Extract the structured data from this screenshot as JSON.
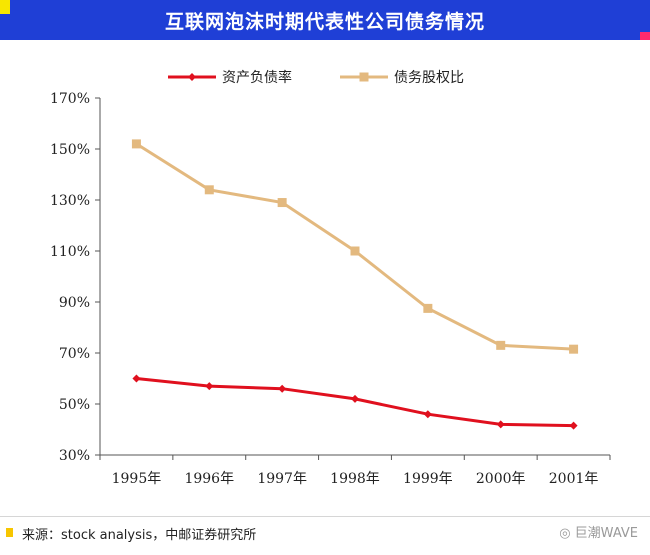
{
  "header": {
    "title": "互联网泡沫时期代表性公司债务情况"
  },
  "footer": {
    "source": "来源：stock analysis，中邮证券研究所",
    "watermark": "◎ 巨潮WAVE"
  },
  "colors": {
    "header_bg": "#1f3fd6",
    "series1": "#e0101e",
    "series2": "#e3b97f"
  },
  "chart_data": {
    "type": "line",
    "title": "",
    "xlabel": "",
    "ylabel": "",
    "legend_position": "top",
    "grid": false,
    "categories": [
      "1995年",
      "1996年",
      "1997年",
      "1998年",
      "1999年",
      "2000年",
      "2001年"
    ],
    "ylim": [
      30,
      170
    ],
    "yticks": [
      "30%",
      "50%",
      "70%",
      "90%",
      "110%",
      "130%",
      "150%",
      "170%"
    ],
    "ytick_values": [
      30,
      50,
      70,
      90,
      110,
      130,
      150,
      170
    ],
    "series": [
      {
        "name": "资产负债率",
        "values": [
          60,
          57,
          56,
          52,
          46,
          42,
          41.5
        ],
        "color": "#e0101e",
        "marker": "diamond"
      },
      {
        "name": "债务股权比",
        "values": [
          152,
          134,
          129,
          110,
          87.5,
          73,
          71.5
        ],
        "color": "#e3b97f",
        "marker": "square"
      }
    ]
  }
}
